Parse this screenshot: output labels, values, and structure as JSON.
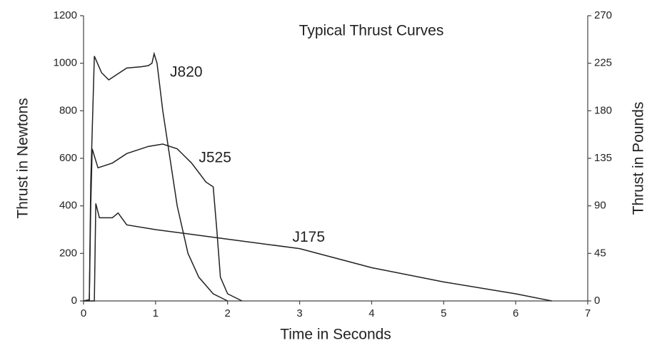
{
  "chart_data": {
    "type": "line",
    "title": "Typical Thrust Curves",
    "xlabel": "Time in Seconds",
    "ylabel": "Thrust in Newtons",
    "y2label": "Thrust in Pounds",
    "xlim": [
      0,
      7
    ],
    "xticks": [
      0,
      1,
      2,
      3,
      4,
      5,
      6,
      7
    ],
    "ylim": [
      0,
      1200
    ],
    "yticks": [
      0,
      200,
      400,
      600,
      800,
      1000,
      1200
    ],
    "y2lim": [
      0,
      270
    ],
    "y2ticks": [
      0,
      45,
      90,
      135,
      180,
      225,
      270
    ],
    "series": [
      {
        "name": "J820",
        "color": "#222222",
        "x": [
          0,
          0.08,
          0.1,
          0.15,
          0.25,
          0.35,
          0.5,
          0.6,
          0.8,
          0.9,
          0.95,
          0.98,
          1.02,
          1.1,
          1.2,
          1.3,
          1.45,
          1.6,
          1.8,
          2.0
        ],
        "values": [
          0,
          5,
          500,
          1030,
          960,
          930,
          960,
          980,
          985,
          990,
          1000,
          1040,
          1000,
          800,
          600,
          400,
          200,
          100,
          30,
          0
        ]
      },
      {
        "name": "J525",
        "color": "#222222",
        "x": [
          0,
          0.08,
          0.1,
          0.12,
          0.2,
          0.4,
          0.6,
          0.9,
          1.1,
          1.3,
          1.5,
          1.7,
          1.8,
          1.85,
          1.9,
          2.0,
          2.2
        ],
        "values": [
          0,
          5,
          400,
          640,
          560,
          580,
          620,
          650,
          660,
          640,
          580,
          500,
          480,
          300,
          100,
          30,
          0
        ]
      },
      {
        "name": "J175",
        "color": "#222222",
        "x": [
          0,
          0.15,
          0.17,
          0.22,
          0.4,
          0.48,
          0.6,
          1.0,
          1.5,
          2.0,
          3.0,
          4.0,
          5.0,
          6.0,
          6.5
        ],
        "values": [
          0,
          0,
          410,
          350,
          350,
          370,
          320,
          300,
          280,
          260,
          220,
          140,
          80,
          30,
          0
        ]
      }
    ]
  }
}
